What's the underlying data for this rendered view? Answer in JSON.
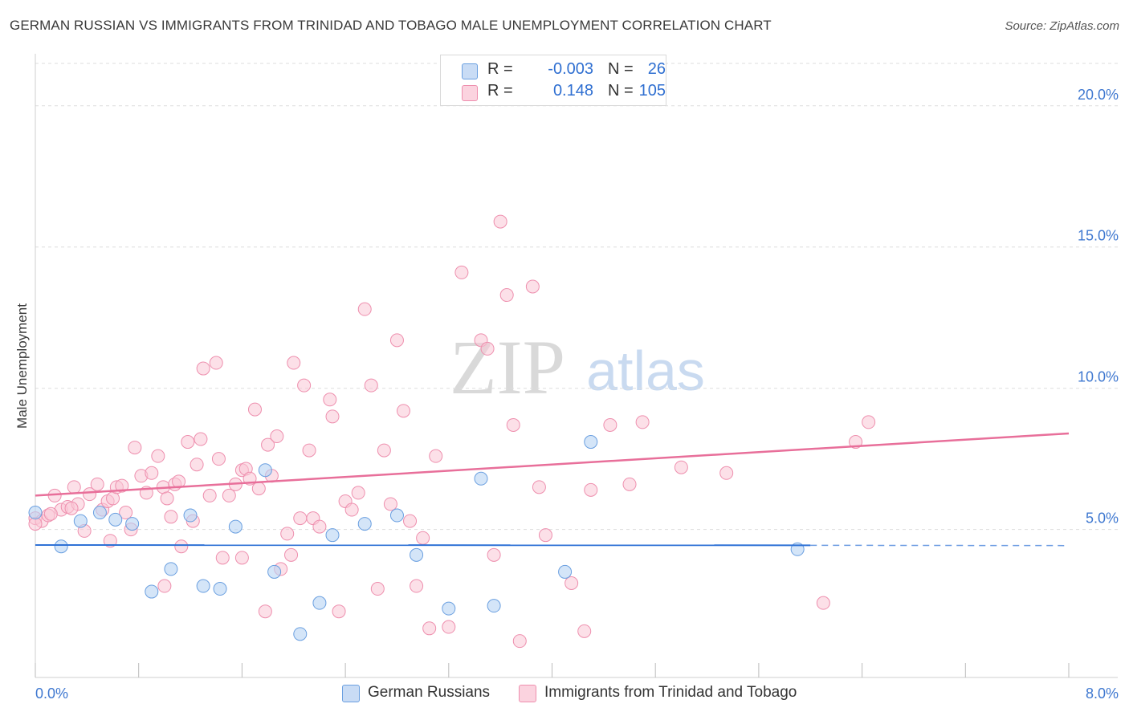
{
  "title": "GERMAN RUSSIAN VS IMMIGRANTS FROM TRINIDAD AND TOBAGO MALE UNEMPLOYMENT CORRELATION CHART",
  "source": "Source: ZipAtlas.com",
  "watermark": {
    "zip": "ZIP",
    "atlas": "atlas"
  },
  "legend_top": {
    "rows": [
      {
        "r_label": "R =",
        "r_value": "-0.003",
        "n_label": "N =",
        "n_value": "26",
        "color": "#a9c8f0"
      },
      {
        "r_label": "R =",
        "r_value": "0.148",
        "n_label": "N = ",
        "n_value": "105",
        "color": "#f7b8cb"
      }
    ]
  },
  "legend_bottom": [
    {
      "label": "German Russians",
      "color": "#a9c8f0"
    },
    {
      "label": "Immigrants from Trinidad and Tobago",
      "color": "#f7b8cb"
    }
  ],
  "chart_data": {
    "type": "scatter",
    "title": "GERMAN RUSSIAN VS IMMIGRANTS FROM TRINIDAD AND TOBAGO MALE UNEMPLOYMENT CORRELATION CHART",
    "xlabel": "",
    "ylabel": "Male Unemployment",
    "xlim": [
      0,
      8
    ],
    "ylim": [
      0.5,
      21.5
    ],
    "x_tick_labels": [
      "0.0%",
      "8.0%"
    ],
    "y_ticks": [
      5,
      10,
      15,
      20
    ],
    "y_tick_labels": [
      "5.0%",
      "10.0%",
      "15.0%",
      "20.0%"
    ],
    "colors": {
      "blue_fill": "#b8d3f4",
      "blue_stroke": "#6a9fe0",
      "blue_line": "#2f72d6",
      "pink_fill": "#f9c6d5",
      "pink_stroke": "#ee8fae",
      "pink_line": "#e86f9a",
      "tick_text": "#3f78d0",
      "grid": "#dddddd"
    },
    "series": [
      {
        "name": "German Russians",
        "trend": {
          "x0": 0.0,
          "y0": 4.45,
          "x1": 6.0,
          "y1": 4.44,
          "dash_x1": 8.0,
          "dash_y1": 4.43
        },
        "points": [
          [
            0.0,
            5.6
          ],
          [
            0.2,
            4.4
          ],
          [
            0.35,
            5.3
          ],
          [
            0.5,
            5.6
          ],
          [
            0.62,
            5.35
          ],
          [
            0.75,
            5.2
          ],
          [
            0.9,
            2.8
          ],
          [
            1.05,
            3.6
          ],
          [
            1.2,
            5.5
          ],
          [
            1.3,
            3.0
          ],
          [
            1.43,
            2.9
          ],
          [
            1.55,
            5.1
          ],
          [
            1.78,
            7.1
          ],
          [
            1.85,
            3.5
          ],
          [
            2.05,
            1.3
          ],
          [
            2.2,
            2.4
          ],
          [
            2.3,
            4.8
          ],
          [
            2.55,
            5.2
          ],
          [
            2.8,
            5.5
          ],
          [
            2.95,
            4.1
          ],
          [
            3.2,
            2.2
          ],
          [
            3.45,
            6.8
          ],
          [
            3.55,
            2.3
          ],
          [
            4.1,
            3.5
          ],
          [
            4.3,
            8.1
          ],
          [
            5.9,
            4.3
          ]
        ]
      },
      {
        "name": "Immigrants from Trinidad and Tobago",
        "trend": {
          "x0": 0.0,
          "y0": 6.2,
          "x1": 8.0,
          "y1": 8.4
        },
        "points": [
          [
            0.0,
            5.4
          ],
          [
            0.05,
            5.3
          ],
          [
            0.1,
            5.5
          ],
          [
            0.15,
            6.2
          ],
          [
            0.2,
            5.7
          ],
          [
            0.25,
            5.8
          ],
          [
            0.3,
            6.5
          ],
          [
            0.33,
            5.9
          ],
          [
            0.38,
            4.95
          ],
          [
            0.42,
            6.25
          ],
          [
            0.48,
            6.6
          ],
          [
            0.52,
            5.7
          ],
          [
            0.56,
            6.0
          ],
          [
            0.6,
            6.1
          ],
          [
            0.63,
            6.5
          ],
          [
            0.67,
            6.55
          ],
          [
            0.7,
            5.6
          ],
          [
            0.74,
            5.0
          ],
          [
            0.77,
            7.9
          ],
          [
            0.82,
            6.9
          ],
          [
            0.86,
            6.3
          ],
          [
            0.9,
            7.0
          ],
          [
            0.95,
            7.6
          ],
          [
            0.99,
            6.5
          ],
          [
            1.02,
            6.1
          ],
          [
            1.05,
            5.45
          ],
          [
            1.08,
            6.6
          ],
          [
            1.11,
            6.7
          ],
          [
            1.13,
            4.4
          ],
          [
            1.18,
            8.1
          ],
          [
            1.22,
            5.3
          ],
          [
            1.25,
            7.3
          ],
          [
            1.28,
            8.2
          ],
          [
            1.3,
            10.7
          ],
          [
            1.35,
            6.2
          ],
          [
            1.4,
            10.9
          ],
          [
            1.42,
            7.5
          ],
          [
            1.45,
            4.0
          ],
          [
            1.5,
            6.2
          ],
          [
            1.55,
            6.6
          ],
          [
            1.6,
            7.1
          ],
          [
            1.63,
            7.15
          ],
          [
            1.66,
            6.8
          ],
          [
            1.7,
            9.25
          ],
          [
            1.73,
            6.45
          ],
          [
            1.78,
            2.1
          ],
          [
            1.8,
            8.0
          ],
          [
            1.83,
            6.9
          ],
          [
            1.87,
            8.3
          ],
          [
            1.9,
            3.6
          ],
          [
            1.95,
            4.85
          ],
          [
            1.98,
            4.1
          ],
          [
            2.0,
            10.9
          ],
          [
            2.05,
            5.4
          ],
          [
            2.08,
            10.1
          ],
          [
            2.12,
            7.8
          ],
          [
            2.15,
            5.4
          ],
          [
            2.2,
            5.1
          ],
          [
            2.28,
            9.6
          ],
          [
            2.3,
            9.0
          ],
          [
            2.35,
            2.1
          ],
          [
            2.4,
            6.0
          ],
          [
            2.45,
            5.7
          ],
          [
            2.55,
            12.8
          ],
          [
            2.6,
            10.1
          ],
          [
            2.65,
            2.9
          ],
          [
            2.7,
            7.8
          ],
          [
            2.75,
            5.9
          ],
          [
            2.8,
            11.7
          ],
          [
            2.85,
            9.2
          ],
          [
            2.9,
            5.3
          ],
          [
            2.95,
            3.0
          ],
          [
            3.05,
            1.5
          ],
          [
            3.1,
            7.6
          ],
          [
            3.2,
            1.55
          ],
          [
            3.3,
            14.1
          ],
          [
            3.45,
            11.7
          ],
          [
            3.5,
            11.4
          ],
          [
            3.55,
            4.1
          ],
          [
            3.6,
            15.9
          ],
          [
            3.65,
            13.3
          ],
          [
            3.7,
            8.7
          ],
          [
            3.75,
            1.05
          ],
          [
            3.85,
            13.6
          ],
          [
            3.9,
            6.5
          ],
          [
            3.95,
            4.8
          ],
          [
            4.15,
            3.1
          ],
          [
            4.25,
            1.4
          ],
          [
            4.3,
            6.4
          ],
          [
            4.45,
            8.7
          ],
          [
            4.6,
            6.6
          ],
          [
            4.7,
            8.8
          ],
          [
            5.35,
            7.0
          ],
          [
            6.1,
            2.4
          ],
          [
            6.35,
            8.1
          ],
          [
            6.45,
            8.8
          ],
          [
            0.0,
            5.2
          ],
          [
            0.12,
            5.55
          ],
          [
            0.28,
            5.75
          ],
          [
            0.58,
            4.6
          ],
          [
            1.0,
            3.0
          ],
          [
            1.6,
            4.0
          ],
          [
            2.5,
            6.3
          ],
          [
            3.0,
            4.7
          ],
          [
            5.0,
            7.2
          ]
        ]
      }
    ]
  }
}
